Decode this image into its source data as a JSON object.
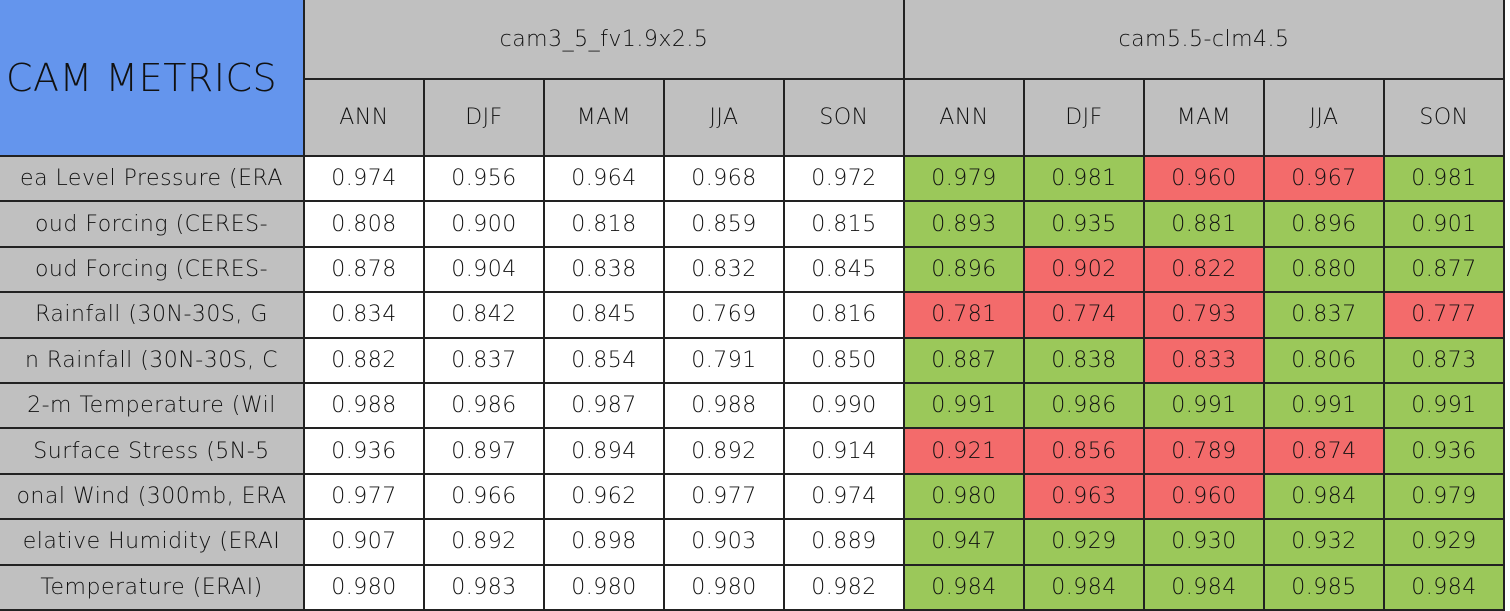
{
  "table": {
    "title": "CAM METRICS",
    "groups": [
      "cam3_5_fv1.9x2.5",
      "cam5.5-clm4.5"
    ],
    "seasons": [
      "ANN",
      "DJF",
      "MAM",
      "JJA",
      "SON"
    ],
    "rows": [
      {
        "label": "ea Level Pressure (ERA",
        "values": [
          "0.974",
          "0.956",
          "0.964",
          "0.968",
          "0.972",
          "0.979",
          "0.981",
          "0.960",
          "0.967",
          "0.981"
        ],
        "colors": [
          "#ffffff",
          "#ffffff",
          "#ffffff",
          "#ffffff",
          "#ffffff",
          "#9bc85a",
          "#9bc85a",
          "#f36b6b",
          "#f36b6b",
          "#9bc85a"
        ]
      },
      {
        "label": "oud Forcing (CERES-",
        "values": [
          "0.808",
          "0.900",
          "0.818",
          "0.859",
          "0.815",
          "0.893",
          "0.935",
          "0.881",
          "0.896",
          "0.901"
        ],
        "colors": [
          "#ffffff",
          "#ffffff",
          "#ffffff",
          "#ffffff",
          "#ffffff",
          "#9bc85a",
          "#9bc85a",
          "#9bc85a",
          "#9bc85a",
          "#9bc85a"
        ]
      },
      {
        "label": "oud Forcing (CERES-",
        "values": [
          "0.878",
          "0.904",
          "0.838",
          "0.832",
          "0.845",
          "0.896",
          "0.902",
          "0.822",
          "0.880",
          "0.877"
        ],
        "colors": [
          "#ffffff",
          "#ffffff",
          "#ffffff",
          "#ffffff",
          "#ffffff",
          "#9bc85a",
          "#f36b6b",
          "#f36b6b",
          "#9bc85a",
          "#9bc85a"
        ]
      },
      {
        "label": "Rainfall (30N-30S, G",
        "values": [
          "0.834",
          "0.842",
          "0.845",
          "0.769",
          "0.816",
          "0.781",
          "0.774",
          "0.793",
          "0.837",
          "0.777"
        ],
        "colors": [
          "#ffffff",
          "#ffffff",
          "#ffffff",
          "#ffffff",
          "#ffffff",
          "#f36b6b",
          "#f36b6b",
          "#f36b6b",
          "#9bc85a",
          "#f36b6b"
        ]
      },
      {
        "label": "n Rainfall (30N-30S, C",
        "values": [
          "0.882",
          "0.837",
          "0.854",
          "0.791",
          "0.850",
          "0.887",
          "0.838",
          "0.833",
          "0.806",
          "0.873"
        ],
        "colors": [
          "#ffffff",
          "#ffffff",
          "#ffffff",
          "#ffffff",
          "#ffffff",
          "#9bc85a",
          "#9bc85a",
          "#f36b6b",
          "#9bc85a",
          "#9bc85a"
        ]
      },
      {
        "label": "2-m Temperature (Wil",
        "values": [
          "0.988",
          "0.986",
          "0.987",
          "0.988",
          "0.990",
          "0.991",
          "0.986",
          "0.991",
          "0.991",
          "0.991"
        ],
        "colors": [
          "#ffffff",
          "#ffffff",
          "#ffffff",
          "#ffffff",
          "#ffffff",
          "#9bc85a",
          "#9bc85a",
          "#9bc85a",
          "#9bc85a",
          "#9bc85a"
        ]
      },
      {
        "label": "Surface Stress (5N-5",
        "values": [
          "0.936",
          "0.897",
          "0.894",
          "0.892",
          "0.914",
          "0.921",
          "0.856",
          "0.789",
          "0.874",
          "0.936"
        ],
        "colors": [
          "#ffffff",
          "#ffffff",
          "#ffffff",
          "#ffffff",
          "#ffffff",
          "#f36b6b",
          "#f36b6b",
          "#f36b6b",
          "#f36b6b",
          "#9bc85a"
        ]
      },
      {
        "label": "onal Wind (300mb, ERA",
        "values": [
          "0.977",
          "0.966",
          "0.962",
          "0.977",
          "0.974",
          "0.980",
          "0.963",
          "0.960",
          "0.984",
          "0.979"
        ],
        "colors": [
          "#ffffff",
          "#ffffff",
          "#ffffff",
          "#ffffff",
          "#ffffff",
          "#9bc85a",
          "#f36b6b",
          "#f36b6b",
          "#9bc85a",
          "#9bc85a"
        ]
      },
      {
        "label": "elative Humidity (ERAI",
        "values": [
          "0.907",
          "0.892",
          "0.898",
          "0.903",
          "0.889",
          "0.947",
          "0.929",
          "0.930",
          "0.932",
          "0.929"
        ],
        "colors": [
          "#ffffff",
          "#ffffff",
          "#ffffff",
          "#ffffff",
          "#ffffff",
          "#9bc85a",
          "#9bc85a",
          "#9bc85a",
          "#9bc85a",
          "#9bc85a"
        ]
      },
      {
        "label": "Temperature (ERAI)",
        "values": [
          "0.980",
          "0.983",
          "0.980",
          "0.980",
          "0.982",
          "0.984",
          "0.984",
          "0.984",
          "0.985",
          "0.984"
        ],
        "colors": [
          "#ffffff",
          "#ffffff",
          "#ffffff",
          "#ffffff",
          "#ffffff",
          "#9bc85a",
          "#9bc85a",
          "#9bc85a",
          "#9bc85a",
          "#9bc85a"
        ]
      }
    ]
  }
}
